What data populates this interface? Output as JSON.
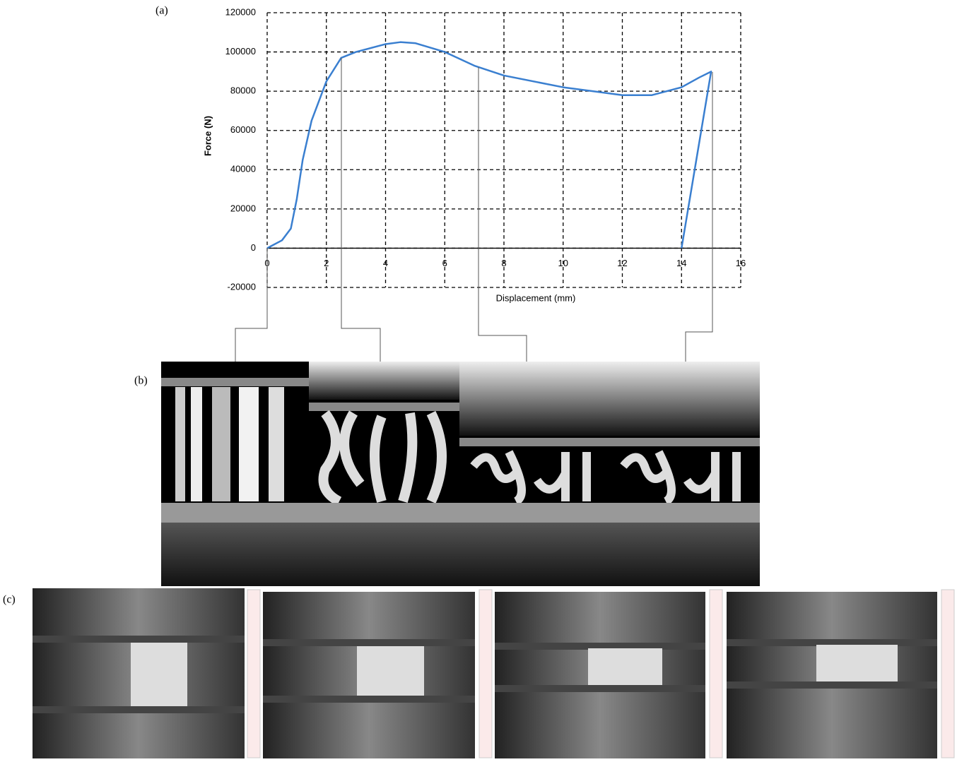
{
  "chart_data": {
    "type": "line",
    "panel_labels": [
      "(a)",
      "(b)",
      "(c)"
    ],
    "x_label": "Displacement (mm)",
    "y_label": "Force (N)",
    "x": [
      0,
      0.5,
      0.8,
      1.0,
      1.2,
      1.5,
      2.0,
      2.5,
      3.0,
      4.0,
      4.5,
      5.0,
      6.0,
      7.0,
      8.0,
      10.0,
      11.0,
      12.0,
      13.0,
      14.0,
      14.6,
      15.0,
      14.5,
      14.0
    ],
    "series": [
      {
        "color": "#3a7fd0",
        "values": [
          0,
          4000,
          10000,
          25000,
          45000,
          65000,
          85000,
          97000,
          100000,
          104000,
          105000,
          104500,
          100000,
          93000,
          88000,
          82000,
          80000,
          78000,
          78000,
          82000,
          87000,
          90000,
          45000,
          0
        ]
      }
    ],
    "xlim": [
      0,
      16
    ],
    "xticks": [
      0,
      2,
      4,
      6,
      8,
      10,
      12,
      14,
      16
    ],
    "ylim": [
      -20000,
      120000
    ],
    "yticks": [
      -20000,
      0,
      20000,
      40000,
      60000,
      80000,
      100000,
      120000
    ],
    "grid": true
  }
}
